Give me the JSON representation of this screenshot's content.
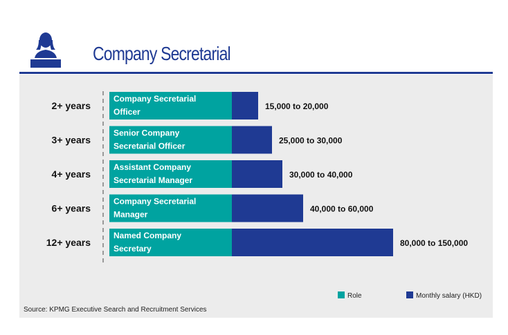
{
  "header": {
    "title": "Company Secretarial",
    "icon": "person-at-desk-icon"
  },
  "colors": {
    "role": "#00a3a0",
    "salary": "#1f3a93",
    "panel_bg": "#ececec",
    "title": "#1f3a93"
  },
  "chart_data": {
    "type": "bar",
    "orientation": "horizontal",
    "stacked": true,
    "categories": [
      "2+ years",
      "3+ years",
      "4+ years",
      "6+ years",
      "12+ years"
    ],
    "roles": [
      [
        "Company Secretarial",
        "Officer"
      ],
      [
        "Senior Company",
        "Secretarial Officer"
      ],
      [
        "Assistant Company",
        "Secretarial Manager"
      ],
      [
        "Company Secretarial",
        "Manager"
      ],
      [
        "Named Company",
        "Secretary"
      ]
    ],
    "salary_ranges": [
      [
        15000,
        20000
      ],
      [
        25000,
        30000
      ],
      [
        30000,
        40000
      ],
      [
        40000,
        60000
      ],
      [
        80000,
        150000
      ]
    ],
    "value_labels": [
      "15,000 to 20,000",
      "25,000 to 30,000",
      "30,000 to 40,000",
      "40,000 to 60,000",
      "80,000 to 150,000"
    ],
    "legend": [
      {
        "name": "Role",
        "color": "#00a3a0"
      },
      {
        "name": "Monthly salary (HKD)",
        "color": "#1f3a93"
      }
    ],
    "legend_position": "bottom-right",
    "grid": false
  },
  "source": "Source: KPMG Executive Search and Recruitment Services"
}
